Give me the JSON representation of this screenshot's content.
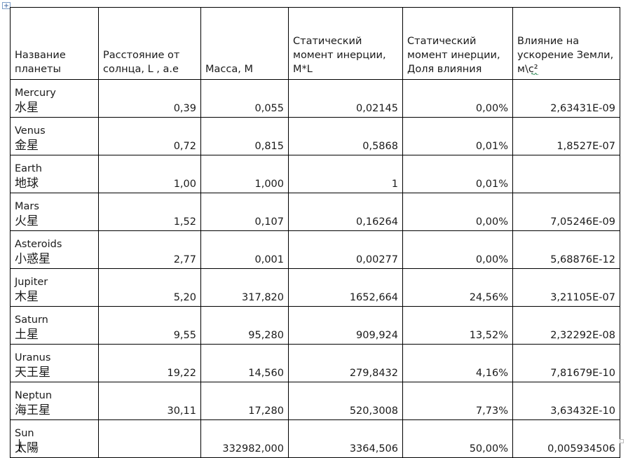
{
  "columns": [
    "Название планеты",
    "Расстояние от солнца,  L , а.е",
    "Масса, М",
    "Статический момент инерции, М*L",
    "Статический момент инерции, Доля влияния",
    "Влияние на ускорение Земли, м\\с²"
  ],
  "rows": [
    {
      "name": "Mercury",
      "cn": "水星",
      "distance": "0,39",
      "mass": "0,055",
      "moment": "0,02145",
      "share": "0,00%",
      "accel": "2,63431E-09"
    },
    {
      "name": "Venus",
      "cn": "金星",
      "distance": "0,72",
      "mass": "0,815",
      "moment": "0,5868",
      "share": "0,01%",
      "accel": "1,8527E-07"
    },
    {
      "name": "Earth",
      "cn": "地球",
      "distance": "1,00",
      "mass": "1,000",
      "moment": "1",
      "share": "0,01%",
      "accel": ""
    },
    {
      "name": "Mars",
      "cn": "火星",
      "distance": "1,52",
      "mass": "0,107",
      "moment": "0,16264",
      "share": "0,00%",
      "accel": "7,05246E-09"
    },
    {
      "name": "Asteroids",
      "cn": "小惑星",
      "distance": "2,77",
      "mass": "0,001",
      "moment": "0,00277",
      "share": "0,00%",
      "accel": "5,68876E-12"
    },
    {
      "name": "Jupiter",
      "cn": "木星",
      "distance": "5,20",
      "mass": "317,820",
      "moment": "1652,664",
      "share": "24,56%",
      "accel": "3,21105E-07"
    },
    {
      "name": "Saturn",
      "cn": "土星",
      "distance": "9,55",
      "mass": "95,280",
      "moment": "909,924",
      "share": "13,52%",
      "accel": "2,32292E-08"
    },
    {
      "name": "Uranus",
      "cn": "天王星",
      "distance": "19,22",
      "mass": "14,560",
      "moment": "279,8432",
      "share": "4,16%",
      "accel": "7,81679E-10"
    },
    {
      "name": "Neptun",
      "cn": "海王星",
      "distance": "30,11",
      "mass": "17,280",
      "moment": "520,3008",
      "share": "7,73%",
      "accel": "3,63432E-10"
    },
    {
      "name": "Sun",
      "cn": "太陽",
      "distance": "",
      "mass": "332982,000",
      "moment": "3364,506",
      "share": "50,00%",
      "accel": "0,005934506"
    }
  ],
  "icons": {
    "table_anchor": "table-move-handle-icon",
    "resize": "table-resize-handle-icon"
  },
  "colors": {
    "border": "#000000",
    "text": "#1a1a1a",
    "squiggle": "#2e8b57"
  }
}
